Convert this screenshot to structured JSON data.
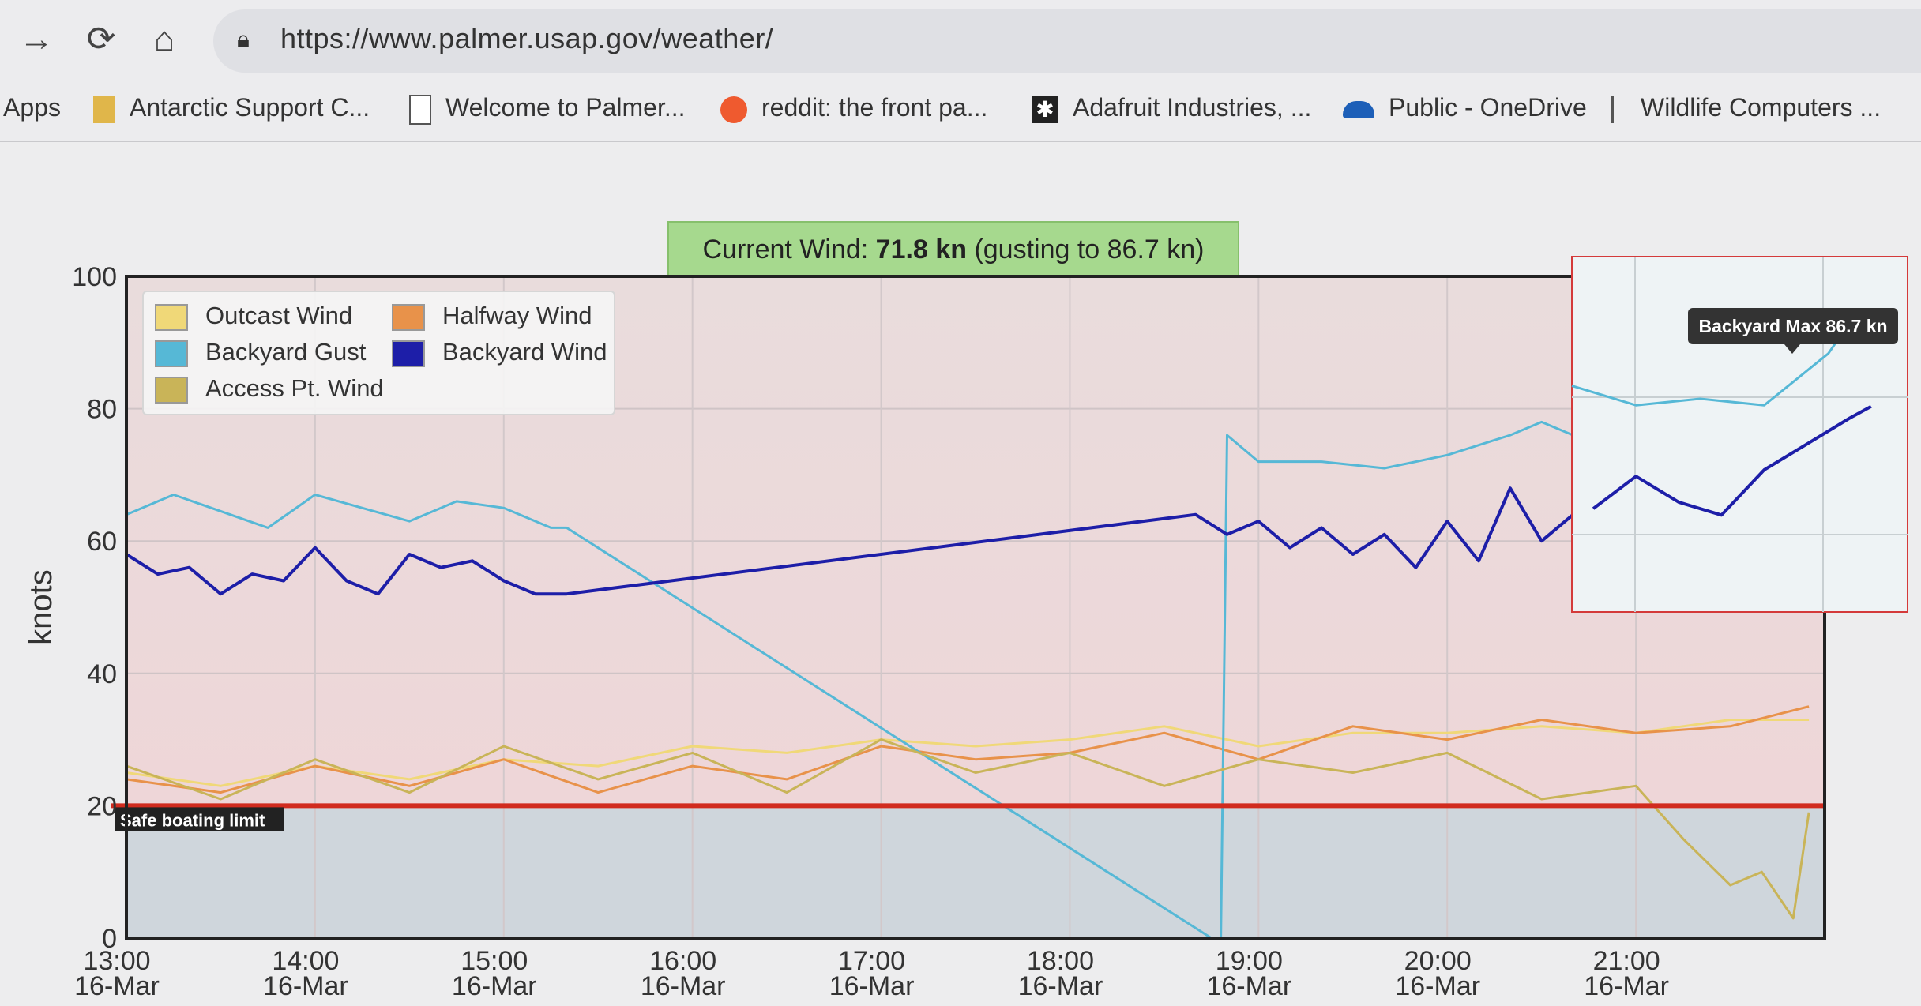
{
  "browser": {
    "url": "https://www.palmer.usap.gov/weather/",
    "bookmarks": [
      {
        "label": "Apps",
        "icon": "apps-icon"
      },
      {
        "label": "Antarctic Support C...",
        "icon": "folder-icon"
      },
      {
        "label": "Welcome to Palmer...",
        "icon": "page-icon"
      },
      {
        "label": "reddit: the front pa...",
        "icon": "reddit-icon"
      },
      {
        "label": "Adafruit Industries, ...",
        "icon": "star-icon"
      },
      {
        "label": "Public - OneDrive",
        "icon": "cloud-icon"
      },
      {
        "label": "Wildlife Computers ...",
        "icon": "bookmark-icon"
      }
    ]
  },
  "current_wind": {
    "label": "Current Wind:",
    "value": "71.8 kn",
    "gust": "(gusting to 86.7 kn)"
  },
  "inset": {
    "tooltip": "Backyard Max 86.7 kn"
  },
  "chart_data": {
    "type": "line",
    "ylabel": "knots",
    "ylim": [
      0,
      100
    ],
    "yticks": [
      0,
      20,
      40,
      60,
      80,
      100
    ],
    "xlim": [
      "13:00",
      "22:00"
    ],
    "xticks": [
      {
        "time": "13:00",
        "date": "16-Mar"
      },
      {
        "time": "14:00",
        "date": "16-Mar"
      },
      {
        "time": "15:00",
        "date": "16-Mar"
      },
      {
        "time": "16:00",
        "date": "16-Mar"
      },
      {
        "time": "17:00",
        "date": "16-Mar"
      },
      {
        "time": "18:00",
        "date": "16-Mar"
      },
      {
        "time": "19:00",
        "date": "16-Mar"
      },
      {
        "time": "20:00",
        "date": "16-Mar"
      },
      {
        "time": "21:00",
        "date": "16-Mar"
      }
    ],
    "plot_band": {
      "from": 0,
      "to": 20,
      "color": "#cfd6dc"
    },
    "threshold": {
      "value": 20,
      "label": "Safe boating limit",
      "color": "#d12b1e"
    },
    "legend_placement": "top-left",
    "series": [
      {
        "name": "Outcast Wind",
        "color": "#f0d878",
        "x": [
          "13:00",
          "13:30",
          "14:00",
          "14:30",
          "15:00",
          "15:30",
          "16:00",
          "16:30",
          "17:00",
          "17:30",
          "18:00",
          "18:30",
          "19:00",
          "19:30",
          "20:00",
          "20:30",
          "21:00",
          "21:30",
          "21:55"
        ],
        "y": [
          25,
          23,
          26,
          24,
          27,
          26,
          29,
          28,
          30,
          29,
          30,
          32,
          29,
          31,
          31,
          32,
          31,
          33,
          33
        ]
      },
      {
        "name": "Halfway Wind",
        "color": "#e8924a",
        "x": [
          "13:00",
          "13:30",
          "14:00",
          "14:30",
          "15:00",
          "15:30",
          "16:00",
          "16:30",
          "17:00",
          "17:30",
          "18:00",
          "18:30",
          "19:00",
          "19:30",
          "20:00",
          "20:30",
          "21:00",
          "21:30",
          "21:55"
        ],
        "y": [
          24,
          22,
          26,
          23,
          27,
          22,
          26,
          24,
          29,
          27,
          28,
          31,
          27,
          32,
          30,
          33,
          31,
          32,
          35
        ]
      },
      {
        "name": "Backyard Gust",
        "color": "#56b8d6",
        "x": [
          "13:00",
          "13:15",
          "13:45",
          "14:00",
          "14:30",
          "14:45",
          "15:00",
          "15:15",
          "15:20",
          "18:45",
          "18:48",
          "18:50",
          "19:00",
          "19:20",
          "19:40",
          "20:00",
          "20:20",
          "20:30",
          "20:45",
          "21:00",
          "21:15",
          "21:30",
          "21:45",
          "21:52"
        ],
        "y": [
          64,
          67,
          62,
          67,
          63,
          66,
          65,
          62,
          62,
          0,
          0,
          76,
          72,
          72,
          71,
          73,
          76,
          78,
          75,
          72,
          73,
          72,
          80,
          86.7
        ]
      },
      {
        "name": "Backyard Wind",
        "color": "#1d1ea8",
        "x": [
          "13:00",
          "13:10",
          "13:20",
          "13:30",
          "13:40",
          "13:50",
          "14:00",
          "14:10",
          "14:20",
          "14:30",
          "14:40",
          "14:50",
          "15:00",
          "15:10",
          "15:20",
          "18:40",
          "18:50",
          "19:00",
          "19:10",
          "19:20",
          "19:30",
          "19:40",
          "19:50",
          "20:00",
          "20:10",
          "20:20",
          "20:30",
          "20:40",
          "20:50",
          "21:00",
          "21:10",
          "21:20",
          "21:30",
          "21:40",
          "21:50",
          "21:55"
        ],
        "y": [
          58,
          55,
          56,
          52,
          55,
          54,
          59,
          54,
          52,
          58,
          56,
          57,
          54,
          52,
          52,
          64,
          61,
          63,
          59,
          62,
          58,
          61,
          56,
          63,
          57,
          68,
          60,
          64,
          56,
          61,
          57,
          55,
          62,
          66,
          70,
          71.8
        ]
      },
      {
        "name": "Access Pt. Wind",
        "color": "#c9b458",
        "x": [
          "13:00",
          "13:30",
          "14:00",
          "14:30",
          "15:00",
          "15:30",
          "16:00",
          "16:30",
          "17:00",
          "17:30",
          "18:00",
          "18:30",
          "19:00",
          "19:30",
          "20:00",
          "20:30",
          "21:00",
          "21:15",
          "21:30",
          "21:40",
          "21:50",
          "21:55"
        ],
        "y": [
          26,
          21,
          27,
          22,
          29,
          24,
          28,
          22,
          30,
          25,
          28,
          23,
          27,
          25,
          28,
          21,
          23,
          15,
          8,
          10,
          3,
          19
        ]
      }
    ]
  }
}
